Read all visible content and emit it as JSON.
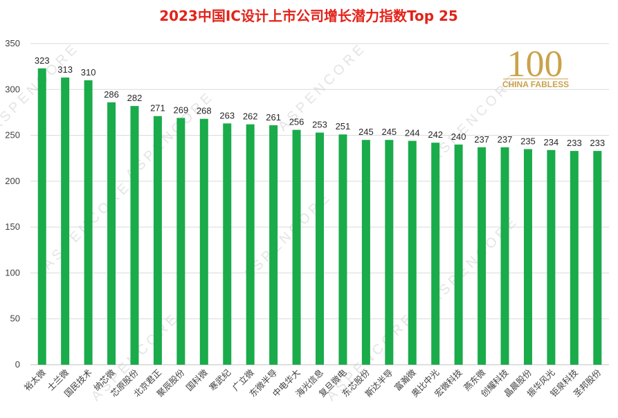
{
  "title": "2023中国IC设计上市公司增长潜力指数Top 25",
  "watermark": "ASPENCORE",
  "logo": {
    "number": "100",
    "text": "CHINA FABLESS"
  },
  "colors": {
    "bar": "#1aab4b",
    "title": "#e2231a",
    "logo": "#c9a24a",
    "grid": "#d9d9d9"
  },
  "chart_data": {
    "type": "bar",
    "title": "2023中国IC设计上市公司增长潜力指数Top 25",
    "xlabel": "",
    "ylabel": "",
    "ylim": [
      0,
      350
    ],
    "yticks": [
      0,
      50,
      100,
      150,
      200,
      250,
      300,
      350
    ],
    "grid": true,
    "legend": "none",
    "categories": [
      "裕太微",
      "士兰微",
      "国民技术",
      "纳芯微",
      "芯原股份",
      "北京君正",
      "聚辰股份",
      "国科微",
      "寒武纪",
      "广立微",
      "东微半导",
      "中电华大",
      "海光信息",
      "复旦微电",
      "东芯股份",
      "斯达半导",
      "富瀚微",
      "奥比中光",
      "宏微科技",
      "燕东微",
      "创耀科技",
      "晶晨股份",
      "振华风光",
      "钜泉科技",
      "圣邦股份"
    ],
    "values": [
      323,
      313,
      310,
      286,
      282,
      271,
      269,
      268,
      263,
      262,
      261,
      256,
      253,
      251,
      245,
      245,
      244,
      242,
      240,
      237,
      237,
      235,
      234,
      233,
      233
    ]
  }
}
